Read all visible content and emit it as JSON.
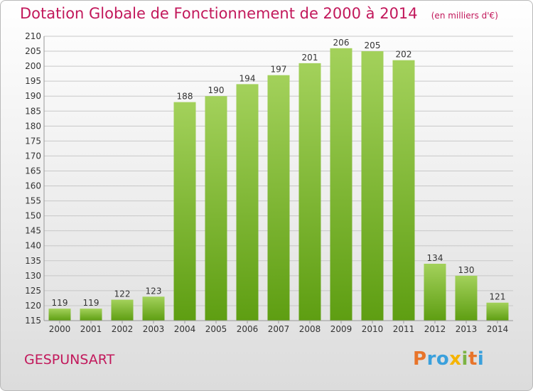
{
  "title": "Dotation Globale de Fonctionnement de 2000 à 2014",
  "unit": "(en milliers d'€)",
  "commune": "GESPUNSART",
  "logo": {
    "text": "Proxiti",
    "colors": [
      "#e8742a",
      "#3aa0dc",
      "#3aa0dc",
      "#f5b400",
      "#7cb342",
      "#e8742a",
      "#3aa0dc"
    ]
  },
  "colors": {
    "accent": "#c2185b",
    "bar_light": "#a3d15b",
    "bar_dark": "#5e9e12",
    "grid": "#c8c8c8"
  },
  "chart_data": {
    "type": "bar",
    "categories": [
      "2000",
      "2001",
      "2002",
      "2003",
      "2004",
      "2005",
      "2006",
      "2007",
      "2008",
      "2009",
      "2010",
      "2011",
      "2012",
      "2013",
      "2014"
    ],
    "values": [
      119,
      119,
      122,
      123,
      188,
      190,
      194,
      197,
      201,
      206,
      205,
      202,
      134,
      130,
      121
    ],
    "ylim": [
      115,
      210
    ],
    "ytick_step": 5,
    "grid": true,
    "data_labels": true
  }
}
